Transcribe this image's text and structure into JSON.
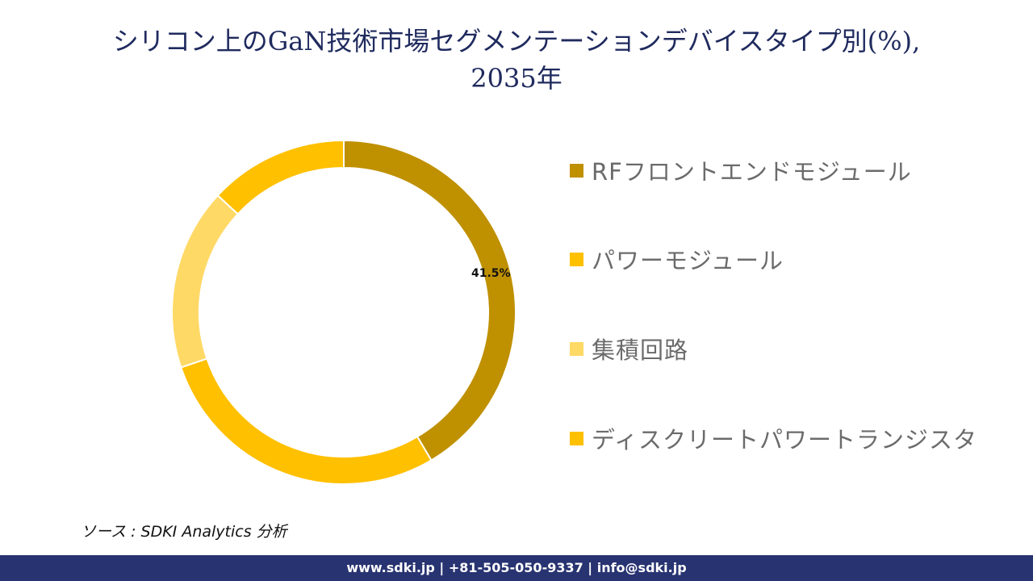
{
  "title_line1": "シリコン上のGaN技術市場セグメンテーションデバイスタイプ別(%),",
  "title_line2": "2035年",
  "chart_data": {
    "type": "pie",
    "subtype": "donut",
    "title": "シリコン上のGaN技術市場セグメンテーションデバイスタイプ別(%), 2035年",
    "categories": [
      "RFフロントエンドモジュール",
      "パワーモジュール",
      "集積回路",
      "ディスクリートパワートランジスタ"
    ],
    "values": [
      41.5,
      28.3,
      17.1,
      13.1
    ],
    "colors": [
      "#BF9000",
      "#FFC000",
      "#FFD966",
      "#FFC000"
    ],
    "data_labels": [
      "41.5%",
      "",
      "",
      ""
    ],
    "legend_position": "right"
  },
  "legend": [
    {
      "label": "RFフロントエンドモジュール",
      "color": "#BF9000"
    },
    {
      "label": "パワーモジュール",
      "color": "#FFC000"
    },
    {
      "label": "集積回路",
      "color": "#FFD966"
    },
    {
      "label": "ディスクリートパワートランジスタ",
      "color": "#FFC000"
    }
  ],
  "source": "ソース : SDKI Analytics 分析",
  "footer": "www.sdki.jp | +81-505-050-9337 | info@sdki.jp"
}
